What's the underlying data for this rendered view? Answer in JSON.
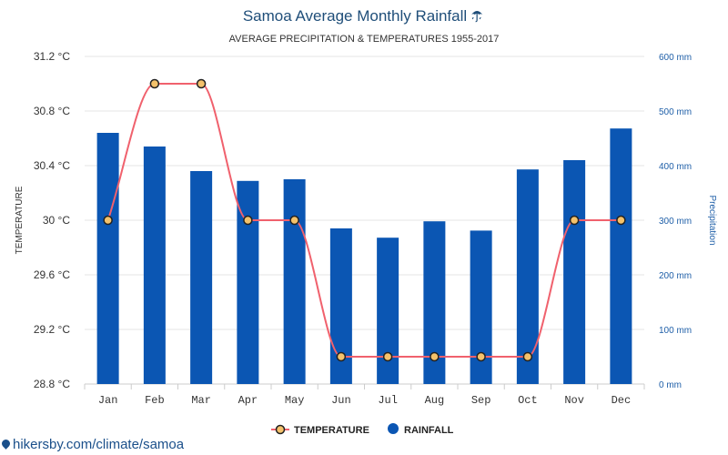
{
  "chart_data": {
    "type": "bar+line",
    "title": "Samoa Average Monthly Rainfall",
    "title_icon": "umbrella-icon",
    "subtitle": "AVERAGE PRECIPITATION & TEMPERATURES 1955-2017",
    "categories": [
      "Jan",
      "Feb",
      "Mar",
      "Apr",
      "May",
      "Jun",
      "Jul",
      "Aug",
      "Sep",
      "Oct",
      "Nov",
      "Dec"
    ],
    "series": [
      {
        "name": "TEMPERATURE",
        "type": "line",
        "axis": "left",
        "color": "#f0616d",
        "marker_color": "#f4c26b",
        "values": [
          30.0,
          31.0,
          31.0,
          30.0,
          30.0,
          29.0,
          29.0,
          29.0,
          29.0,
          29.0,
          30.0,
          30.0
        ]
      },
      {
        "name": "RAINFALL",
        "type": "bar",
        "axis": "right",
        "color": "#0b56b3",
        "values": [
          460,
          435,
          390,
          372,
          375,
          285,
          268,
          298,
          281,
          393,
          410,
          468
        ]
      }
    ],
    "ylabel": "TEMPERATURE",
    "ylabel_right": "Precipitation",
    "ylim": [
      28.8,
      31.2
    ],
    "ylim_right": [
      0,
      600
    ],
    "y_ticks": [
      "31.2 °C",
      "30.8 °C",
      "30.4 °C",
      "30 °C",
      "29.6 °C",
      "29.2 °C",
      "28.8 °C"
    ],
    "y_ticks_right": [
      "600 mm",
      "500 mm",
      "400 mm",
      "300 mm",
      "200 mm",
      "100 mm",
      "0 mm"
    ],
    "grid": true,
    "legend_position": "bottom-center"
  },
  "footer": {
    "text": "hikersby.com/climate/samoa"
  }
}
